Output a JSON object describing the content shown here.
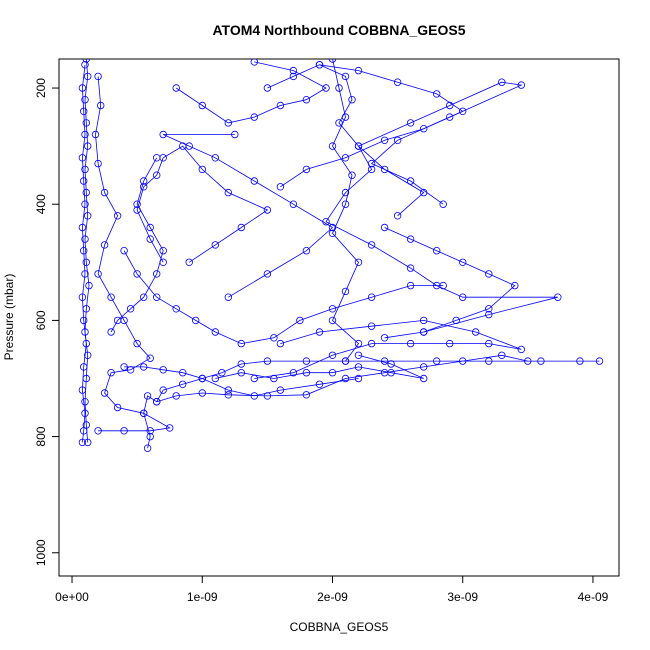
{
  "chart_data": {
    "type": "scatter",
    "title": "ATOM4 Northbound COBBNA_GEOS5",
    "xlabel": "COBBNA_GEOS5",
    "ylabel": "Pressure (mbar)",
    "xlim": [
      -1e-10,
      4.2e-09
    ],
    "ylim": [
      1040,
      150
    ],
    "y_reversed": true,
    "x_ticks": [
      {
        "value": 0,
        "label": "0e+00"
      },
      {
        "value": 1e-09,
        "label": "1e-09"
      },
      {
        "value": 2e-09,
        "label": "2e-09"
      },
      {
        "value": 3e-09,
        "label": "3e-09"
      },
      {
        "value": 4e-09,
        "label": "4e-09"
      }
    ],
    "y_ticks": [
      {
        "value": 200,
        "label": "200"
      },
      {
        "value": 400,
        "label": "400"
      },
      {
        "value": 600,
        "label": "600"
      },
      {
        "value": 800,
        "label": "800"
      },
      {
        "value": 1000,
        "label": "1000"
      }
    ],
    "grid": false,
    "series_color": "#0000ff",
    "marker": "open-circle",
    "series": [
      {
        "points": [
          [
            1.2e-10,
            810
          ],
          [
            1.1e-10,
            780
          ],
          [
            1e-10,
            740
          ],
          [
            1.1e-10,
            700
          ],
          [
            1.2e-10,
            660
          ],
          [
            1e-10,
            620
          ],
          [
            1.1e-10,
            580
          ],
          [
            1.3e-10,
            540
          ],
          [
            1.1e-10,
            500
          ],
          [
            1e-10,
            460
          ],
          [
            1.2e-10,
            420
          ],
          [
            1.1e-10,
            380
          ],
          [
            1e-10,
            340
          ],
          [
            1.2e-10,
            300
          ],
          [
            1.1e-10,
            260
          ],
          [
            1e-10,
            220
          ],
          [
            1.2e-10,
            180
          ],
          [
            1.1e-10,
            150
          ]
        ]
      },
      {
        "points": [
          [
            8e-11,
            810
          ],
          [
            9e-11,
            790
          ],
          [
            1e-10,
            760
          ],
          [
            8e-11,
            720
          ],
          [
            9e-11,
            680
          ],
          [
            1.1e-10,
            640
          ],
          [
            9e-11,
            600
          ],
          [
            8e-11,
            560
          ],
          [
            1e-10,
            520
          ],
          [
            9e-11,
            480
          ],
          [
            8e-11,
            440
          ],
          [
            1e-10,
            400
          ],
          [
            9e-11,
            360
          ],
          [
            8e-11,
            320
          ],
          [
            1e-10,
            280
          ],
          [
            9e-11,
            240
          ],
          [
            8e-11,
            200
          ],
          [
            1e-10,
            160
          ]
        ]
      },
      {
        "points": [
          [
            2e-10,
            790
          ],
          [
            4e-10,
            790
          ],
          [
            6e-10,
            790
          ],
          [
            7.5e-10,
            785
          ],
          [
            5.5e-10,
            760
          ],
          [
            3.5e-10,
            750
          ],
          [
            2.5e-10,
            725
          ],
          [
            3e-10,
            690
          ],
          [
            4.5e-10,
            685
          ],
          [
            6e-10,
            665
          ],
          [
            5e-10,
            640
          ],
          [
            4e-10,
            600
          ],
          [
            3e-10,
            560
          ],
          [
            2e-10,
            520
          ],
          [
            2.5e-10,
            470
          ],
          [
            3.5e-10,
            420
          ],
          [
            2.5e-10,
            380
          ],
          [
            2e-10,
            330
          ],
          [
            1.8e-10,
            280
          ],
          [
            2.2e-10,
            230
          ],
          [
            2e-10,
            180
          ]
        ]
      },
      {
        "points": [
          [
            5.8e-10,
            820
          ],
          [
            6e-10,
            800
          ],
          [
            5.5e-10,
            760
          ],
          [
            5.8e-10,
            730
          ],
          [
            6.5e-10,
            740
          ],
          [
            7e-10,
            720
          ],
          [
            8.5e-10,
            710
          ],
          [
            1e-09,
            700
          ],
          [
            1.15e-09,
            690
          ],
          [
            1.3e-09,
            675
          ],
          [
            1.5e-09,
            670
          ],
          [
            1.8e-09,
            670
          ],
          [
            2.1e-09,
            670
          ],
          [
            2.4e-09,
            670
          ],
          [
            2.8e-09,
            670
          ],
          [
            3.2e-09,
            670
          ],
          [
            3.6e-09,
            670
          ],
          [
            3.9e-09,
            670
          ],
          [
            4.05e-09,
            670
          ]
        ]
      },
      {
        "points": [
          [
            6.5e-10,
            740
          ],
          [
            8e-10,
            730
          ],
          [
            1e-09,
            725
          ],
          [
            1.2e-09,
            728
          ],
          [
            1.5e-09,
            730
          ],
          [
            1.8e-09,
            728
          ],
          [
            2.1e-09,
            700
          ],
          [
            2.4e-09,
            690
          ],
          [
            2.7e-09,
            680
          ],
          [
            3e-09,
            670
          ],
          [
            3.3e-09,
            660
          ],
          [
            3.5e-09,
            670
          ]
        ]
      },
      {
        "points": [
          [
            1.4e-09,
            700
          ],
          [
            1.7e-09,
            690
          ],
          [
            2e-09,
            660
          ],
          [
            2.3e-09,
            640
          ],
          [
            2.6e-09,
            640
          ],
          [
            2.9e-09,
            640
          ],
          [
            3.2e-09,
            640
          ],
          [
            3.45e-09,
            650
          ],
          [
            3.1e-09,
            620
          ],
          [
            2.7e-09,
            600
          ],
          [
            2.3e-09,
            610
          ],
          [
            1.9e-09,
            620
          ],
          [
            1.6e-09,
            640
          ]
        ]
      },
      {
        "points": [
          [
            2e-09,
            150
          ],
          [
            2.05e-09,
            200
          ],
          [
            2.1e-09,
            250
          ],
          [
            2e-09,
            300
          ],
          [
            2.15e-09,
            350
          ],
          [
            2.1e-09,
            400
          ],
          [
            2e-09,
            450
          ],
          [
            2.2e-09,
            500
          ],
          [
            2.1e-09,
            550
          ],
          [
            2e-09,
            600
          ],
          [
            2.2e-09,
            640
          ],
          [
            2.1e-09,
            670
          ]
        ]
      },
      {
        "points": [
          [
            1.9e-09,
            160
          ],
          [
            2.1e-09,
            180
          ],
          [
            2.15e-09,
            220
          ],
          [
            2.05e-09,
            260
          ],
          [
            2.2e-09,
            300
          ],
          [
            2.3e-09,
            340
          ],
          [
            2.1e-09,
            380
          ],
          [
            1.95e-09,
            430
          ],
          [
            2.3e-09,
            470
          ],
          [
            2.6e-09,
            510
          ],
          [
            2.8e-09,
            540
          ],
          [
            3e-09,
            560
          ],
          [
            3.73e-09,
            560
          ],
          [
            3.2e-09,
            590
          ],
          [
            2.7e-09,
            620
          ]
        ]
      },
      {
        "points": [
          [
            1.2e-09,
            560
          ],
          [
            1.5e-09,
            520
          ],
          [
            1.8e-09,
            480
          ],
          [
            2e-09,
            440
          ],
          [
            1.7e-09,
            400
          ],
          [
            1.4e-09,
            360
          ],
          [
            1.1e-09,
            320
          ],
          [
            9e-10,
            300
          ],
          [
            7e-10,
            280
          ],
          [
            1.25e-09,
            280
          ]
        ]
      },
      {
        "points": [
          [
            2.5e-09,
            420
          ],
          [
            2.7e-09,
            380
          ],
          [
            2.4e-09,
            340
          ],
          [
            2.2e-09,
            300
          ],
          [
            2.6e-09,
            260
          ],
          [
            2.9e-09,
            230
          ],
          [
            3.3e-09,
            190
          ],
          [
            3.45e-09,
            195
          ],
          [
            2.9e-09,
            250
          ],
          [
            2.5e-09,
            290
          ],
          [
            2.3e-09,
            330
          ],
          [
            2.6e-09,
            360
          ],
          [
            2.85e-09,
            400
          ]
        ]
      },
      {
        "points": [
          [
            9e-10,
            500
          ],
          [
            1.1e-09,
            470
          ],
          [
            1.3e-09,
            440
          ],
          [
            1.5e-09,
            410
          ],
          [
            1.2e-09,
            380
          ],
          [
            1e-09,
            340
          ],
          [
            8.5e-10,
            300
          ],
          [
            7e-10,
            320
          ],
          [
            6.5e-10,
            350
          ],
          [
            5.5e-10,
            370
          ],
          [
            5e-10,
            410
          ],
          [
            6e-10,
            460
          ],
          [
            7e-10,
            500
          ]
        ]
      },
      {
        "points": [
          [
            4e-10,
            480
          ],
          [
            5e-10,
            520
          ],
          [
            6.5e-10,
            560
          ],
          [
            8e-10,
            580
          ],
          [
            9.5e-10,
            600
          ],
          [
            1.1e-09,
            620
          ],
          [
            1.3e-09,
            640
          ],
          [
            1.55e-09,
            630
          ],
          [
            1.75e-09,
            600
          ],
          [
            2e-09,
            580
          ],
          [
            2.3e-09,
            560
          ],
          [
            2.6e-09,
            540
          ],
          [
            2.85e-09,
            540
          ]
        ]
      },
      {
        "points": [
          [
            3e-10,
            620
          ],
          [
            3.5e-10,
            600
          ],
          [
            4.5e-10,
            580
          ],
          [
            5.5e-10,
            560
          ],
          [
            6.5e-10,
            520
          ],
          [
            7e-10,
            480
          ],
          [
            6e-10,
            440
          ],
          [
            5e-10,
            400
          ],
          [
            5.5e-10,
            360
          ],
          [
            6.5e-10,
            320
          ]
        ]
      },
      {
        "points": [
          [
            1.5e-09,
            200
          ],
          [
            1.7e-09,
            180
          ],
          [
            1.9e-09,
            160
          ],
          [
            2.2e-09,
            170
          ],
          [
            2.5e-09,
            190
          ],
          [
            2.8e-09,
            210
          ],
          [
            3e-09,
            240
          ],
          [
            2.7e-09,
            270
          ],
          [
            2.4e-09,
            290
          ],
          [
            2.1e-09,
            320
          ],
          [
            1.8e-09,
            340
          ],
          [
            1.6e-09,
            370
          ]
        ]
      },
      {
        "points": [
          [
            8e-10,
            200
          ],
          [
            1e-09,
            230
          ],
          [
            1.2e-09,
            260
          ],
          [
            1.4e-09,
            250
          ],
          [
            1.6e-09,
            230
          ],
          [
            1.8e-09,
            220
          ],
          [
            1.95e-09,
            200
          ],
          [
            1.7e-09,
            170
          ],
          [
            1.4e-09,
            155
          ]
        ]
      },
      {
        "points": [
          [
            1.1e-09,
            700
          ],
          [
            1.3e-09,
            690
          ],
          [
            1.55e-09,
            700
          ],
          [
            1.8e-09,
            690
          ],
          [
            2e-09,
            690
          ],
          [
            2.2e-09,
            680
          ],
          [
            2.45e-09,
            690
          ],
          [
            2.7e-09,
            700
          ],
          [
            2.45e-09,
            675
          ],
          [
            2.2e-09,
            660
          ]
        ]
      },
      {
        "points": [
          [
            4e-10,
            680
          ],
          [
            5.5e-10,
            680
          ],
          [
            7e-10,
            685
          ],
          [
            8.5e-10,
            690
          ],
          [
            1e-09,
            700
          ],
          [
            1.2e-09,
            720
          ],
          [
            1.4e-09,
            730
          ],
          [
            1.6e-09,
            720
          ],
          [
            1.9e-09,
            710
          ],
          [
            2.2e-09,
            700
          ]
        ]
      },
      {
        "points": [
          [
            2.4e-09,
            440
          ],
          [
            2.6e-09,
            460
          ],
          [
            2.8e-09,
            480
          ],
          [
            3e-09,
            500
          ],
          [
            3.2e-09,
            520
          ],
          [
            3.4e-09,
            540
          ],
          [
            3.2e-09,
            580
          ],
          [
            2.95e-09,
            600
          ],
          [
            2.7e-09,
            620
          ],
          [
            2.4e-09,
            630
          ]
        ]
      }
    ]
  }
}
